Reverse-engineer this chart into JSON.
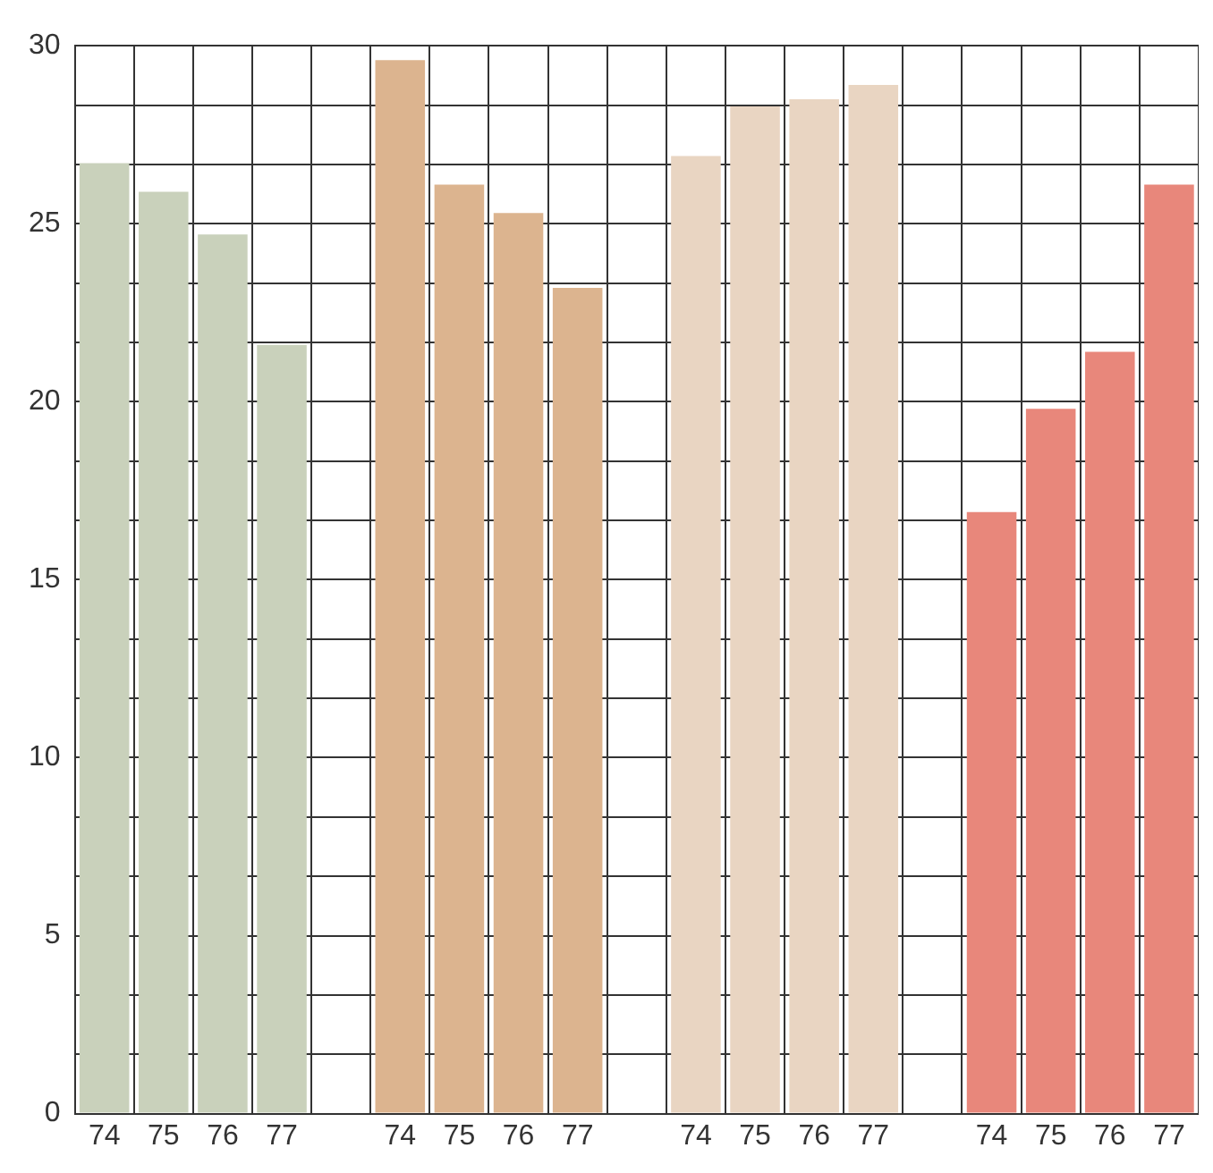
{
  "chart_data": {
    "type": "bar",
    "categories": [
      "74",
      "75",
      "76",
      "77",
      null,
      "74",
      "75",
      "76",
      "77",
      null,
      "74",
      "75",
      "76",
      "77",
      null,
      "74",
      "75",
      "76",
      "77"
    ],
    "values": [
      26.7,
      25.9,
      24.7,
      21.6,
      null,
      29.6,
      26.1,
      25.3,
      23.2,
      null,
      26.9,
      28.3,
      28.5,
      28.9,
      null,
      16.9,
      19.8,
      21.4,
      26.1
    ],
    "colors": [
      "#c9d1bb",
      "#c9d1bb",
      "#c9d1bb",
      "#c9d1bb",
      "#ffffff",
      "#dcb48f",
      "#dcb48f",
      "#dcb48f",
      "#dcb48f",
      "#ffffff",
      "#e9d5c2",
      "#e9d5c2",
      "#e9d5c2",
      "#e9d5c2",
      "#ffffff",
      "#e8877b",
      "#e8877b",
      "#e8877b",
      "#e8877b"
    ],
    "ylim": [
      0,
      30
    ],
    "yticks": [
      0,
      {
        "value": 1.67,
        "label": null
      },
      {
        "value": 3.33,
        "label": null
      },
      5,
      {
        "value": 6.67,
        "label": null
      },
      {
        "value": 8.33,
        "label": null
      },
      10,
      {
        "value": 11.67,
        "label": null
      },
      {
        "value": 13.33,
        "label": null
      },
      15,
      {
        "value": 16.67,
        "label": null
      },
      {
        "value": 18.33,
        "label": null
      },
      20,
      {
        "value": 21.67,
        "label": null
      },
      {
        "value": 23.33,
        "label": null
      },
      25,
      {
        "value": 26.67,
        "label": null
      },
      {
        "value": 28.33,
        "label": null
      },
      30
    ],
    "grid": true
  }
}
